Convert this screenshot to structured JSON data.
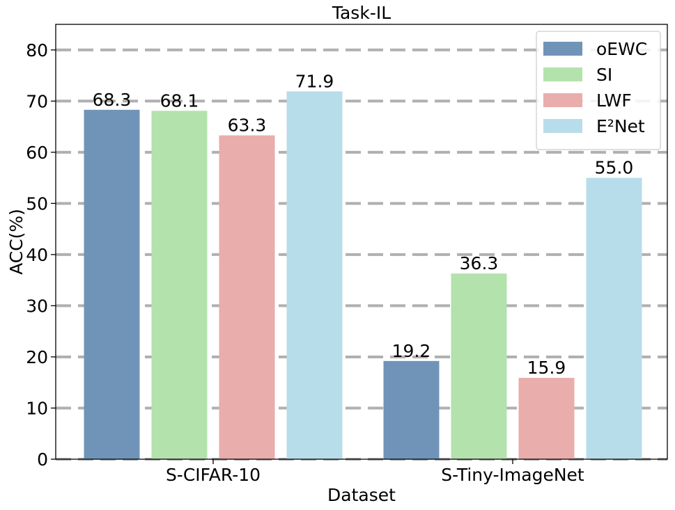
{
  "chart_data": {
    "type": "bar",
    "title": "Task-IL",
    "xlabel": "Dataset",
    "ylabel": "ACC(%)",
    "categories": [
      "S-CIFAR-10",
      "S-Tiny-ImageNet"
    ],
    "series": [
      {
        "name": "oEWC",
        "color": "#7094b8",
        "values": [
          68.3,
          19.2
        ]
      },
      {
        "name": "SI",
        "color": "#b3e2ac",
        "values": [
          68.1,
          36.3
        ]
      },
      {
        "name": "LWF",
        "color": "#e9adac",
        "values": [
          63.3,
          15.9
        ]
      },
      {
        "name": "E²Net",
        "color": "#b8ddea",
        "values": [
          71.9,
          55.0
        ]
      }
    ],
    "ylim": [
      0,
      85
    ],
    "yticks": [
      0,
      10,
      20,
      30,
      40,
      50,
      60,
      70,
      80
    ],
    "grid": true,
    "grid_style": "dashed",
    "legend_position": "top-right"
  }
}
